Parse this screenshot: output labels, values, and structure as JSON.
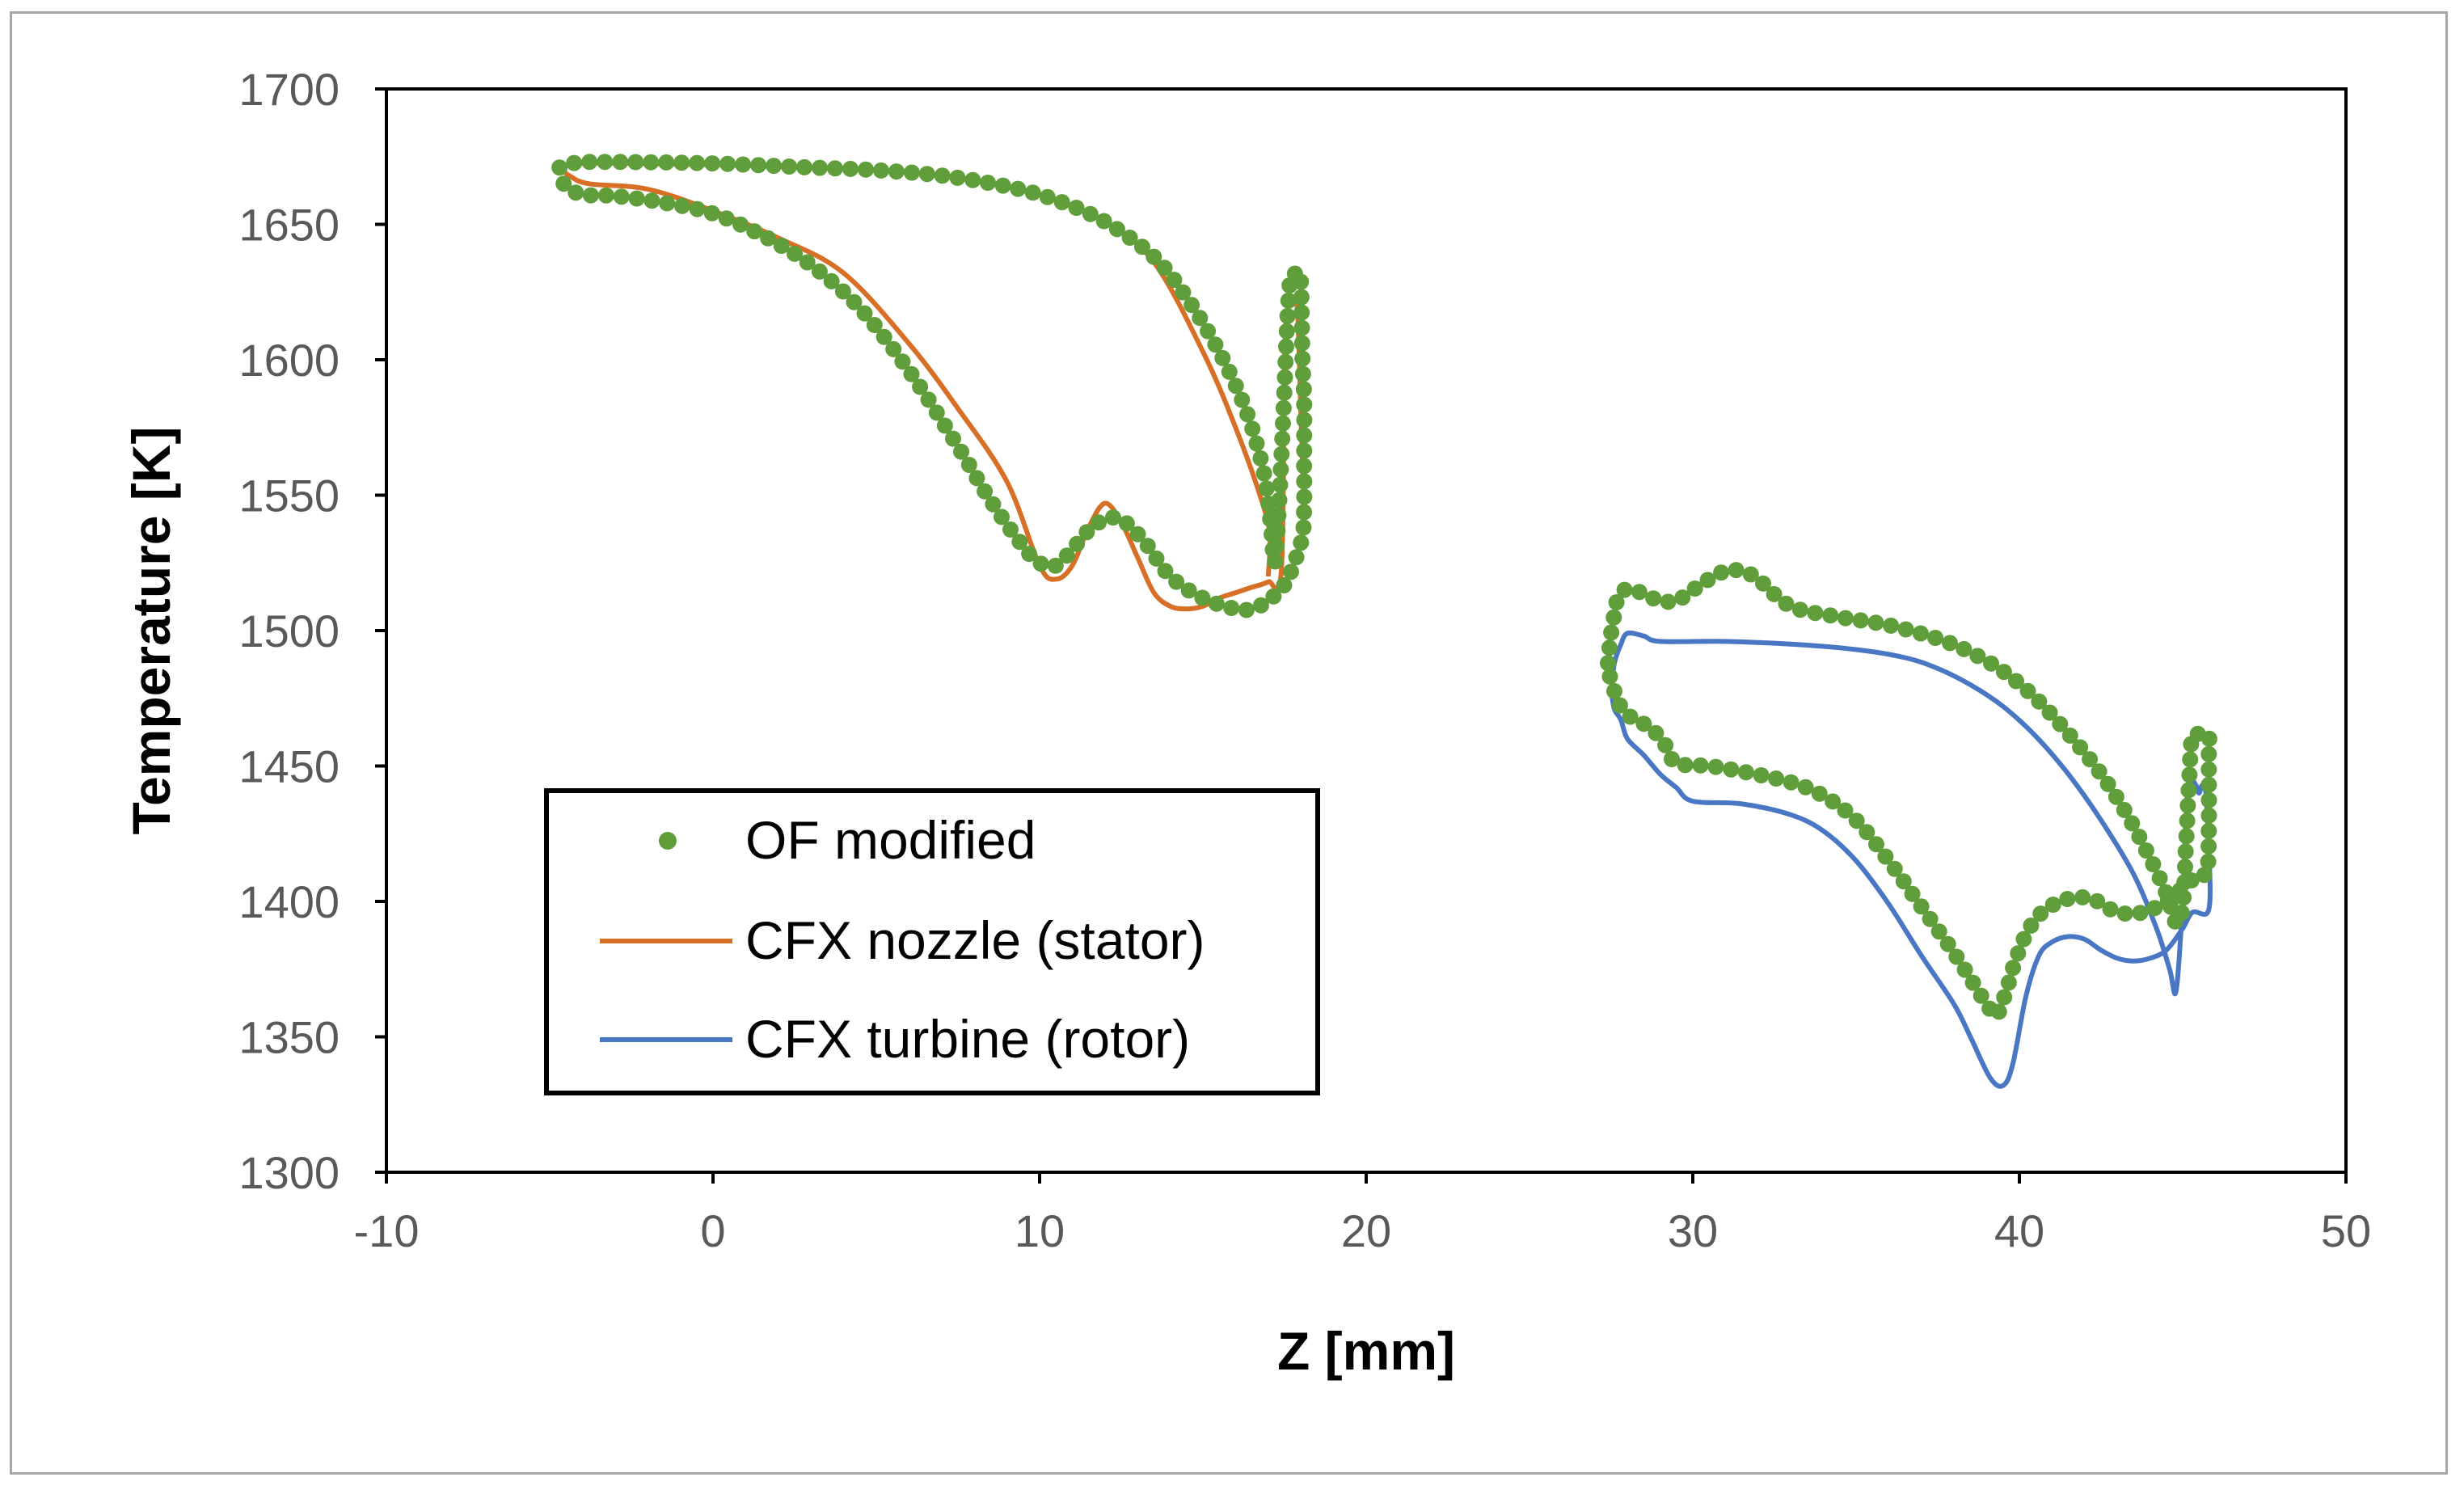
{
  "chart_data": {
    "type": "scatter",
    "title": "",
    "xlabel": "Z [mm]",
    "ylabel": "Temperature [K]",
    "xlim": [
      -10,
      50
    ],
    "ylim": [
      1300,
      1700
    ],
    "xticks": [
      -10,
      0,
      10,
      20,
      30,
      40,
      50
    ],
    "yticks": [
      1300,
      1350,
      1400,
      1450,
      1500,
      1550,
      1600,
      1650,
      1700
    ],
    "xtick_labels": [
      "-10",
      "0",
      "10",
      "20",
      "30",
      "40",
      "50"
    ],
    "ytick_labels": [
      "1300",
      "1350",
      "1400",
      "1450",
      "1500",
      "1550",
      "1600",
      "1650",
      "1700"
    ],
    "grid": false,
    "legend_position": "lower-left",
    "series": [
      {
        "name": "OF modified",
        "kind": "markers",
        "color": "#5f9e3a",
        "segments": [
          [
            [
              -4.7,
              1671
            ],
            [
              -4.4,
              1672
            ],
            [
              -4.0,
              1673
            ],
            [
              -2.5,
              1673
            ],
            [
              0.0,
              1672.5
            ],
            [
              3.0,
              1671
            ],
            [
              5.0,
              1670
            ],
            [
              7.0,
              1668
            ],
            [
              9.0,
              1664
            ],
            [
              10.5,
              1659
            ],
            [
              12.0,
              1651
            ],
            [
              13.5,
              1638
            ],
            [
              14.5,
              1623
            ],
            [
              15.5,
              1603
            ],
            [
              16.3,
              1582
            ],
            [
              16.8,
              1562
            ],
            [
              17.0,
              1548
            ],
            [
              17.1,
              1536
            ],
            [
              17.2,
              1525
            ],
            [
              17.3,
              1540
            ],
            [
              17.4,
              1563
            ],
            [
              17.5,
              1590
            ],
            [
              17.6,
              1618
            ],
            [
              17.7,
              1631
            ],
            [
              17.9,
              1631
            ],
            [
              18.0,
              1629
            ],
            [
              18.05,
              1600
            ],
            [
              18.1,
              1585
            ],
            [
              18.1,
              1560
            ],
            [
              18.1,
              1545
            ],
            [
              18.05,
              1535
            ],
            [
              17.8,
              1525
            ],
            [
              17.5,
              1517
            ],
            [
              17.0,
              1511
            ],
            [
              16.5,
              1508
            ],
            [
              16.0,
              1508
            ],
            [
              15.0,
              1512
            ],
            [
              14.0,
              1520
            ],
            [
              13.2,
              1533
            ],
            [
              12.5,
              1541
            ],
            [
              12.0,
              1541
            ],
            [
              11.5,
              1537
            ],
            [
              11.0,
              1530
            ],
            [
              10.5,
              1524
            ],
            [
              10.0,
              1525
            ],
            [
              9.5,
              1531
            ],
            [
              8.5,
              1548
            ],
            [
              7.5,
              1568
            ],
            [
              6.0,
              1596
            ],
            [
              4.5,
              1619
            ],
            [
              3.0,
              1635
            ],
            [
              1.5,
              1646
            ],
            [
              0.0,
              1654
            ],
            [
              -1.5,
              1658
            ],
            [
              -3.0,
              1660.5
            ],
            [
              -4.0,
              1661
            ],
            [
              -4.5,
              1664
            ],
            [
              -4.7,
              1668
            ]
          ],
          [
            [
              27.4,
              1488
            ],
            [
              27.5,
              1499
            ],
            [
              27.6,
              1506
            ],
            [
              27.7,
              1512
            ],
            [
              27.9,
              1515
            ],
            [
              28.2,
              1515
            ],
            [
              28.6,
              1513
            ],
            [
              29.0,
              1511
            ],
            [
              29.5,
              1511
            ],
            [
              30.0,
              1515
            ],
            [
              30.5,
              1519
            ],
            [
              31.0,
              1522
            ],
            [
              31.5,
              1522
            ],
            [
              32.0,
              1519
            ],
            [
              33.0,
              1509
            ],
            [
              34.5,
              1505
            ],
            [
              36.0,
              1502
            ],
            [
              37.5,
              1497
            ],
            [
              38.5,
              1492
            ],
            [
              39.5,
              1485
            ],
            [
              40.5,
              1475
            ],
            [
              41.5,
              1462
            ],
            [
              42.5,
              1447
            ],
            [
              43.3,
              1432
            ],
            [
              44.0,
              1416
            ],
            [
              44.5,
              1403
            ],
            [
              44.8,
              1392
            ],
            [
              45.0,
              1398
            ],
            [
              45.1,
              1420
            ],
            [
              45.2,
              1445
            ],
            [
              45.3,
              1461
            ],
            [
              45.6,
              1461
            ],
            [
              45.8,
              1461
            ],
            [
              45.8,
              1453
            ],
            [
              45.8,
              1427
            ],
            [
              45.75,
              1411
            ],
            [
              45.5,
              1410
            ],
            [
              45.0,
              1405
            ],
            [
              44.5,
              1400
            ],
            [
              43.8,
              1396
            ],
            [
              43.0,
              1396
            ],
            [
              42.2,
              1401
            ],
            [
              41.5,
              1401
            ],
            [
              40.8,
              1397
            ],
            [
              40.3,
              1390
            ],
            [
              39.9,
              1379
            ],
            [
              39.6,
              1367
            ],
            [
              39.3,
              1358
            ],
            [
              39.0,
              1362
            ],
            [
              38.0,
              1381
            ],
            [
              37.0,
              1398
            ],
            [
              36.0,
              1415
            ],
            [
              35.0,
              1430
            ],
            [
              34.0,
              1439
            ],
            [
              33.0,
              1444
            ],
            [
              31.5,
              1448
            ],
            [
              30.5,
              1450
            ],
            [
              29.5,
              1451
            ],
            [
              29.2,
              1457
            ],
            [
              28.8,
              1463
            ],
            [
              28.3,
              1467
            ],
            [
              28.0,
              1469
            ],
            [
              27.7,
              1474
            ],
            [
              27.5,
              1482
            ],
            [
              27.4,
              1484
            ]
          ]
        ]
      },
      {
        "name": "CFX nozzle (stator)",
        "kind": "line",
        "color": "#d86f27",
        "segments": [
          [
            [
              -4.7,
              1671
            ],
            [
              -4.4,
              1668
            ],
            [
              -3.8,
              1665
            ],
            [
              -2.0,
              1663
            ],
            [
              0.0,
              1655
            ],
            [
              2.0,
              1645
            ],
            [
              4.0,
              1632
            ],
            [
              6.0,
              1606
            ],
            [
              7.5,
              1582
            ],
            [
              9.0,
              1555
            ],
            [
              10.0,
              1524
            ],
            [
              10.5,
              1519
            ],
            [
              11.0,
              1524
            ],
            [
              11.5,
              1538
            ],
            [
              12.0,
              1547
            ],
            [
              12.5,
              1540
            ],
            [
              13.0,
              1527
            ],
            [
              13.5,
              1514
            ],
            [
              14.0,
              1509
            ],
            [
              14.5,
              1508
            ],
            [
              15.0,
              1509
            ],
            [
              15.5,
              1512
            ],
            [
              16.0,
              1514
            ],
            [
              16.5,
              1516
            ],
            [
              17.0,
              1518
            ],
            [
              17.4,
              1522
            ],
            [
              17.5,
              1600
            ],
            [
              17.6,
              1618
            ],
            [
              17.8,
              1622
            ],
            [
              17.9,
              1617
            ],
            [
              18.0,
              1580
            ],
            [
              18.1,
              1545
            ]
          ],
          [
            [
              17.0,
              1520
            ],
            [
              17.05,
              1535
            ],
            [
              16.8,
              1548
            ],
            [
              16.0,
              1575
            ],
            [
              15.0,
              1603
            ],
            [
              13.5,
              1636
            ],
            [
              12.0,
              1651
            ],
            [
              10.5,
              1659
            ],
            [
              9.0,
              1664
            ],
            [
              7.0,
              1668
            ],
            [
              5.0,
              1670
            ],
            [
              3.0,
              1671
            ],
            [
              0.0,
              1672
            ],
            [
              -2.5,
              1672.5
            ],
            [
              -4.0,
              1672.5
            ],
            [
              -4.7,
              1671
            ]
          ]
        ]
      },
      {
        "name": "CFX turbine (rotor)",
        "kind": "line",
        "color": "#4a77c4",
        "segments": [
          [
            [
              27.5,
              1478
            ],
            [
              27.6,
              1488
            ],
            [
              27.8,
              1495
            ],
            [
              28.0,
              1499
            ],
            [
              28.5,
              1498
            ],
            [
              29.0,
              1496
            ],
            [
              31.0,
              1496
            ],
            [
              33.0,
              1495
            ],
            [
              35.0,
              1493
            ],
            [
              36.5,
              1490
            ],
            [
              37.5,
              1486
            ],
            [
              38.5,
              1480
            ],
            [
              39.5,
              1472
            ],
            [
              40.5,
              1461
            ],
            [
              41.5,
              1447
            ],
            [
              42.5,
              1430
            ],
            [
              43.5,
              1410
            ],
            [
              44.2,
              1390
            ],
            [
              44.6,
              1375
            ],
            [
              44.8,
              1367
            ],
            [
              45.0,
              1400
            ],
            [
              45.1,
              1430
            ],
            [
              45.2,
              1445
            ],
            [
              45.4,
              1443
            ],
            [
              45.5,
              1440
            ],
            [
              45.6,
              1443
            ],
            [
              45.7,
              1441
            ],
            [
              45.8,
              1420
            ],
            [
              45.8,
              1397
            ],
            [
              45.3,
              1396
            ],
            [
              45.0,
              1390
            ],
            [
              44.5,
              1382
            ],
            [
              44.0,
              1379
            ],
            [
              43.5,
              1378
            ],
            [
              43.0,
              1379
            ],
            [
              42.5,
              1382
            ],
            [
              42.0,
              1386
            ],
            [
              41.5,
              1387
            ],
            [
              41.0,
              1385
            ],
            [
              40.6,
              1380
            ],
            [
              40.2,
              1365
            ],
            [
              39.8,
              1340
            ],
            [
              39.5,
              1332
            ],
            [
              39.1,
              1335
            ],
            [
              38.5,
              1350
            ],
            [
              38.0,
              1362
            ],
            [
              37.0,
              1380
            ],
            [
              36.0,
              1399
            ],
            [
              35.0,
              1415
            ],
            [
              34.0,
              1426
            ],
            [
              33.0,
              1432
            ],
            [
              31.5,
              1436
            ],
            [
              30.0,
              1437
            ],
            [
              29.5,
              1442
            ],
            [
              29.0,
              1447
            ],
            [
              28.5,
              1454
            ],
            [
              28.0,
              1460
            ],
            [
              27.8,
              1467
            ],
            [
              27.6,
              1471
            ],
            [
              27.5,
              1478
            ]
          ]
        ]
      }
    ]
  },
  "legend": {
    "items": [
      {
        "label": "OF modified",
        "kind": "marker",
        "color": "#5f9e3a"
      },
      {
        "label": "CFX nozzle (stator)",
        "kind": "line",
        "color": "#d86f27"
      },
      {
        "label": "CFX turbine (rotor)",
        "kind": "line",
        "color": "#4a77c4"
      }
    ]
  }
}
